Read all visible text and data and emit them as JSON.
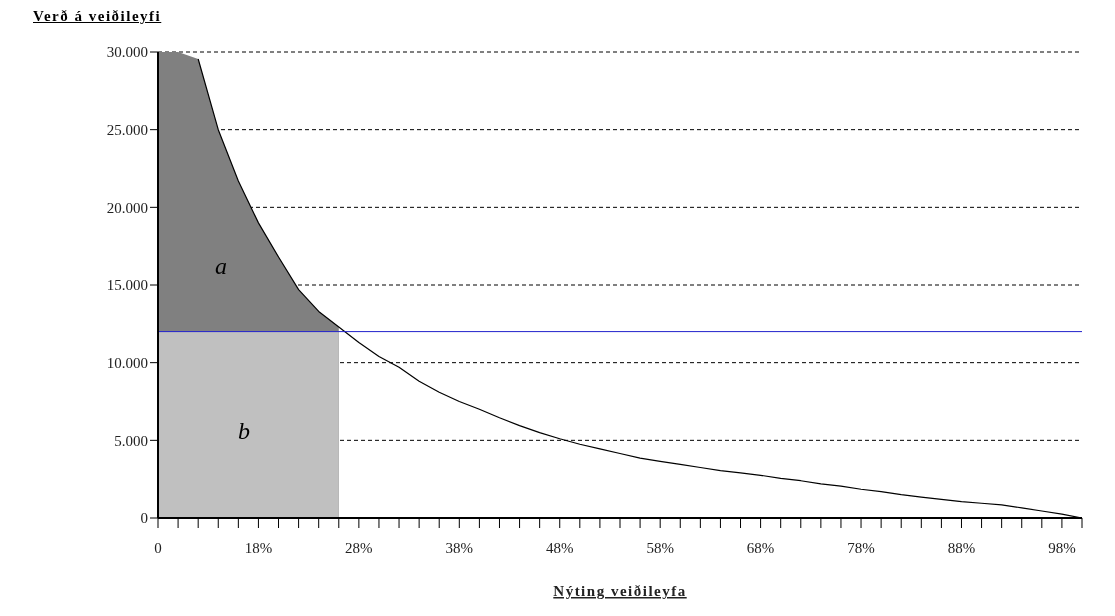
{
  "chart_data": {
    "type": "line",
    "xlabel": "Nýting veiðileyfa",
    "ylabel": "Verð á veiðileyfi",
    "categories": [
      "0",
      null,
      null,
      null,
      null,
      "18%",
      null,
      null,
      null,
      null,
      "28%",
      null,
      null,
      null,
      null,
      "38%",
      null,
      null,
      null,
      null,
      "48%",
      null,
      null,
      null,
      null,
      "58%",
      null,
      null,
      null,
      null,
      "68%",
      null,
      null,
      null,
      null,
      "78%",
      null,
      null,
      null,
      null,
      "88%",
      null,
      null,
      null,
      null,
      "98%",
      null
    ],
    "series": [
      {
        "type": "area",
        "color": "#808080",
        "values": [
          30000,
          30000,
          29550,
          25000,
          21700,
          19000,
          16800,
          14700,
          13300,
          12300,
          null,
          null,
          null,
          null,
          null,
          null,
          null,
          null,
          null,
          null,
          null,
          null,
          null,
          null,
          null,
          null,
          null,
          null,
          null,
          null,
          null,
          null,
          null,
          null,
          null,
          null,
          null,
          null,
          null,
          null,
          null,
          null,
          null,
          null,
          null,
          null,
          null
        ]
      },
      {
        "type": "area",
        "color": "#c0c0c0",
        "values": [
          12000,
          12000,
          12000,
          12000,
          12000,
          12000,
          12000,
          12000,
          12000,
          12000,
          null,
          null,
          null,
          null,
          null,
          null,
          null,
          null,
          null,
          null,
          null,
          null,
          null,
          null,
          null,
          null,
          null,
          null,
          null,
          null,
          null,
          null,
          null,
          null,
          null,
          null,
          null,
          null,
          null,
          null,
          null,
          null,
          null,
          null,
          null,
          null,
          null
        ]
      },
      {
        "color": "#000000",
        "values": [
          null,
          null,
          29550,
          25000,
          21700,
          19000,
          16800,
          14700,
          13300,
          12300,
          11300,
          10400,
          9700,
          8800,
          8100,
          7500,
          7000,
          6450,
          5950,
          5500,
          5100,
          4750,
          4450,
          4150,
          3850,
          3650,
          3450,
          3250,
          3050,
          2900,
          2750,
          2550,
          2400,
          2200,
          2050,
          1850,
          1700,
          1500,
          1350,
          1200,
          1050,
          950,
          850,
          650,
          450,
          250,
          0
        ]
      }
    ],
    "ylim": [
      0,
      30000
    ],
    "yticks": [
      {
        "value": 0,
        "label": "0"
      },
      {
        "value": 5000,
        "label": "5.000"
      },
      {
        "value": 10000,
        "label": "10.000"
      },
      {
        "value": 15000,
        "label": "15.000"
      },
      {
        "value": 20000,
        "label": "20.000"
      },
      {
        "value": 25000,
        "label": "25.000"
      },
      {
        "value": 30000,
        "label": "30.000"
      }
    ],
    "grid": "y",
    "ref_lines": [
      {
        "axis": "y",
        "value": 12000,
        "color": "#2222cc"
      }
    ],
    "annotations": [
      "a",
      "b"
    ]
  }
}
